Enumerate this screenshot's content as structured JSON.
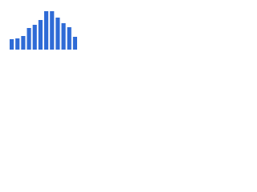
{
  "chart_data": {
    "type": "bar",
    "categories": [
      null,
      null,
      null,
      null,
      null,
      null,
      null,
      null,
      null,
      null,
      null,
      null
    ],
    "values": [
      13,
      14,
      17,
      27,
      31,
      37,
      48,
      48,
      40,
      33,
      28,
      16
    ],
    "color": "#2f6bd6",
    "ylim": [
      0,
      50
    ]
  }
}
